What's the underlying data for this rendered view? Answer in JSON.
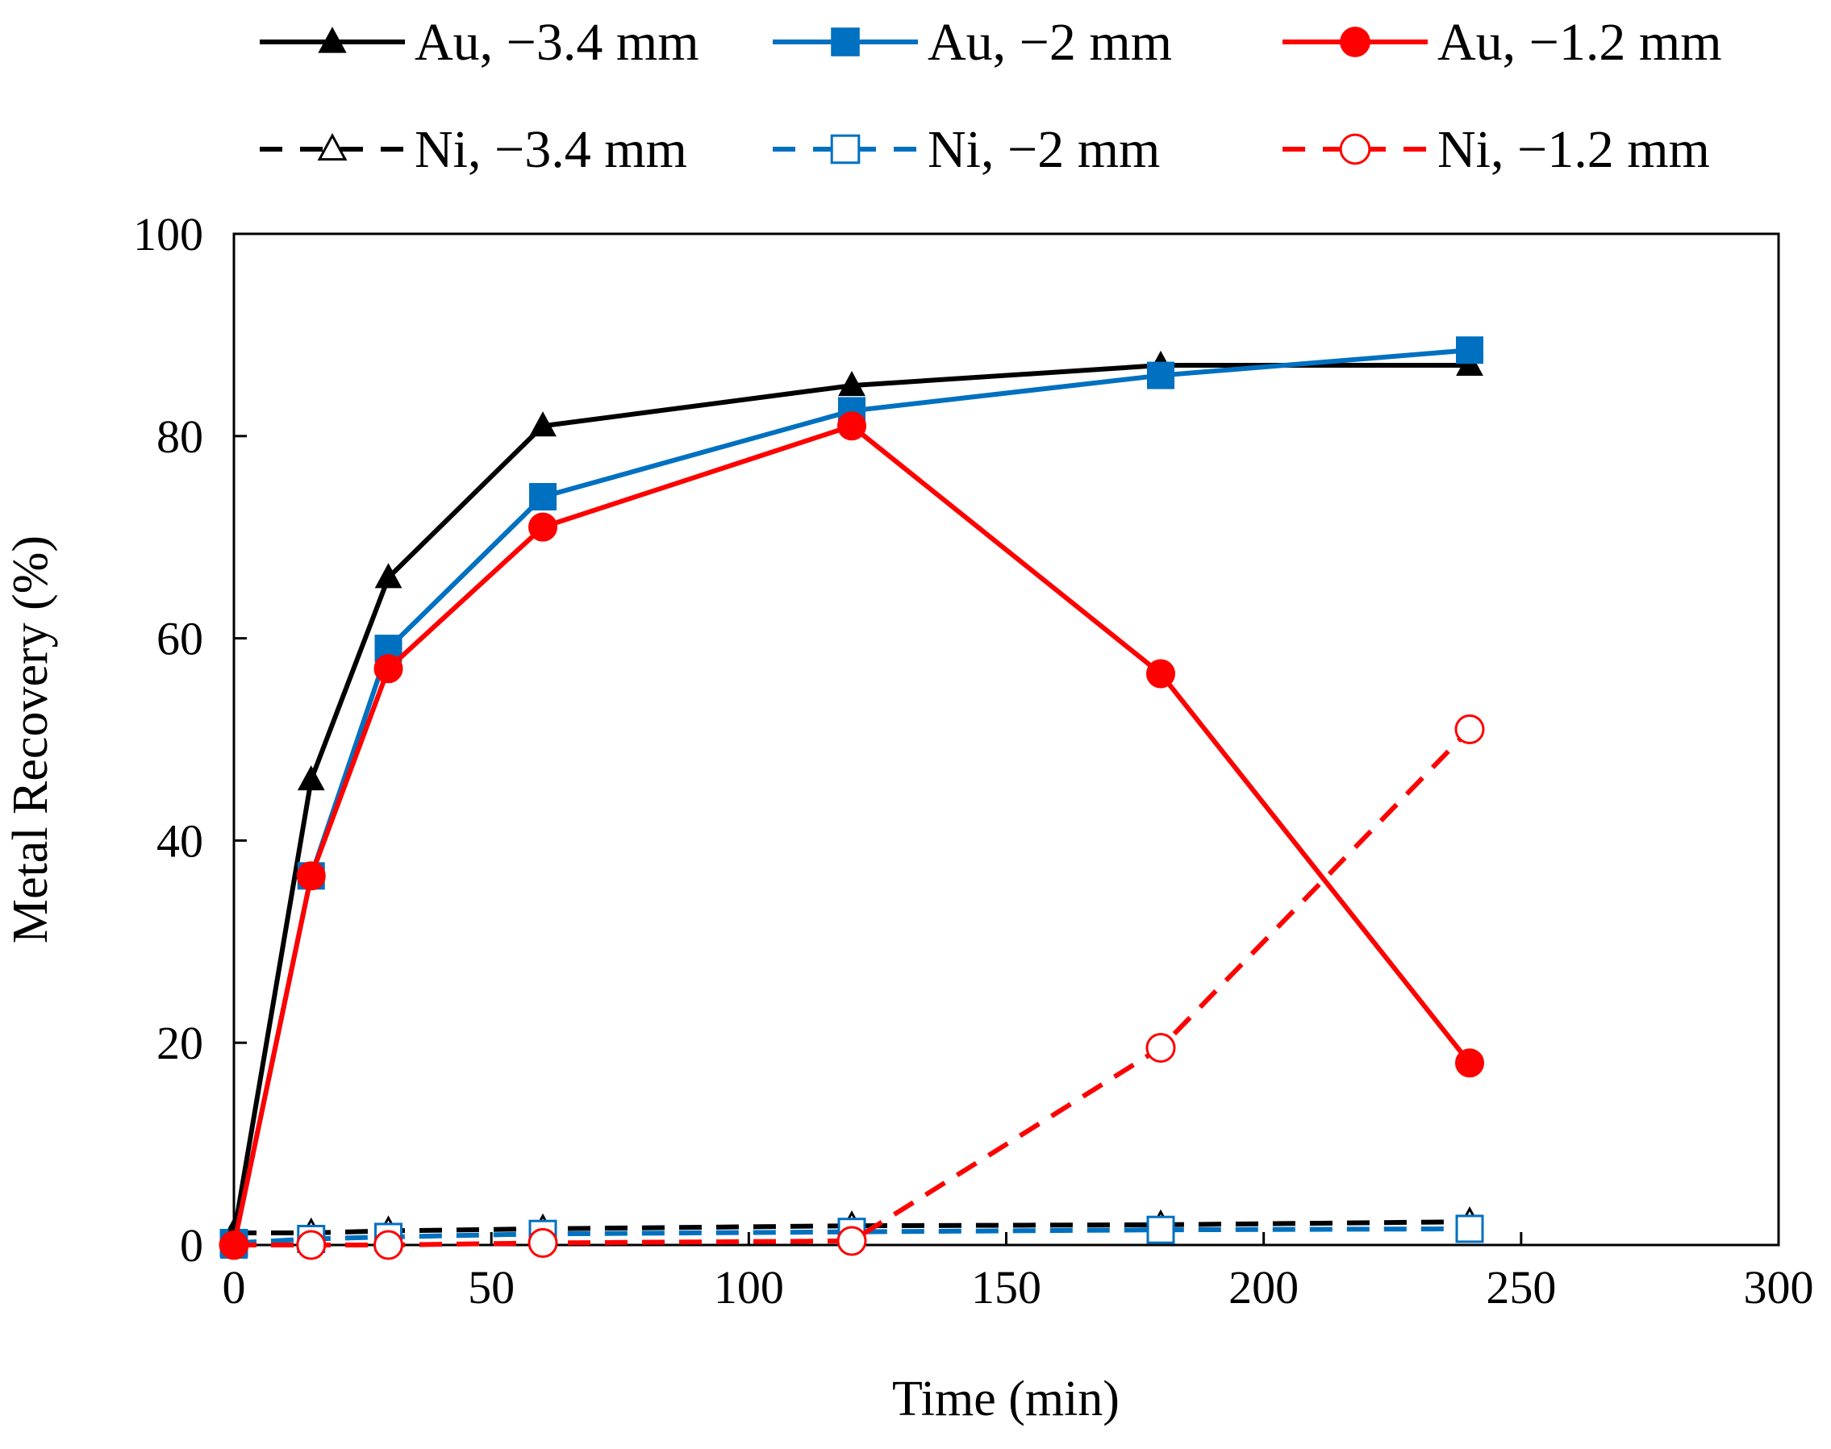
{
  "chart_data": {
    "type": "line",
    "title": "",
    "xlabel": "Time (min)",
    "ylabel": "Metal Recovery (%)",
    "xlim": [
      0,
      300
    ],
    "ylim": [
      0,
      100
    ],
    "xticks": [
      0,
      50,
      100,
      150,
      200,
      250,
      300
    ],
    "yticks": [
      0,
      20,
      40,
      60,
      80,
      100
    ],
    "x_tick_labels": [
      "0",
      "50",
      "100",
      "150",
      "200",
      "250",
      "300"
    ],
    "y_tick_labels": [
      "0",
      "20",
      "40",
      "60",
      "80",
      "100"
    ],
    "grid": false,
    "legend_position": "top",
    "series": [
      {
        "name": "Au, −3.4 mm",
        "color": "#000000",
        "dash": "solid",
        "marker": "triangle",
        "filled": true,
        "x": [
          0,
          15,
          30,
          60,
          120,
          180,
          240
        ],
        "y": [
          1,
          46,
          66,
          81,
          85,
          87,
          87
        ]
      },
      {
        "name": "Au, −2 mm",
        "color": "#0070C0",
        "dash": "solid",
        "marker": "square",
        "filled": true,
        "x": [
          0,
          15,
          30,
          60,
          120,
          180,
          240
        ],
        "y": [
          0,
          36.5,
          59,
          74,
          82.5,
          86,
          88.5
        ]
      },
      {
        "name": "Au, −1.2 mm",
        "color": "#FF0000",
        "dash": "solid",
        "marker": "circle",
        "filled": true,
        "x": [
          0,
          15,
          30,
          60,
          120,
          180,
          240
        ],
        "y": [
          0,
          36.5,
          57,
          71,
          81,
          56.5,
          18
        ]
      },
      {
        "name": "Ni, −3.4 mm",
        "color": "#000000",
        "dash": "dashed",
        "marker": "triangle",
        "filled": false,
        "x": [
          0,
          15,
          30,
          60,
          120,
          180,
          240
        ],
        "y": [
          1.2,
          1.2,
          1.4,
          1.6,
          1.9,
          2,
          2.3
        ]
      },
      {
        "name": "Ni, −2 mm",
        "color": "#0070C0",
        "dash": "dashed",
        "marker": "square",
        "filled": false,
        "x": [
          0,
          15,
          30,
          60,
          120,
          180,
          240
        ],
        "y": [
          0.2,
          0.6,
          0.8,
          1.1,
          1.3,
          1.5,
          1.6
        ]
      },
      {
        "name": "Ni, −1.2 mm",
        "color": "#FF0000",
        "dash": "dashed",
        "marker": "circle",
        "filled": false,
        "x": [
          0,
          15,
          30,
          60,
          120,
          180,
          240
        ],
        "y": [
          0,
          0,
          0,
          0.2,
          0.4,
          19.5,
          51
        ]
      }
    ]
  }
}
